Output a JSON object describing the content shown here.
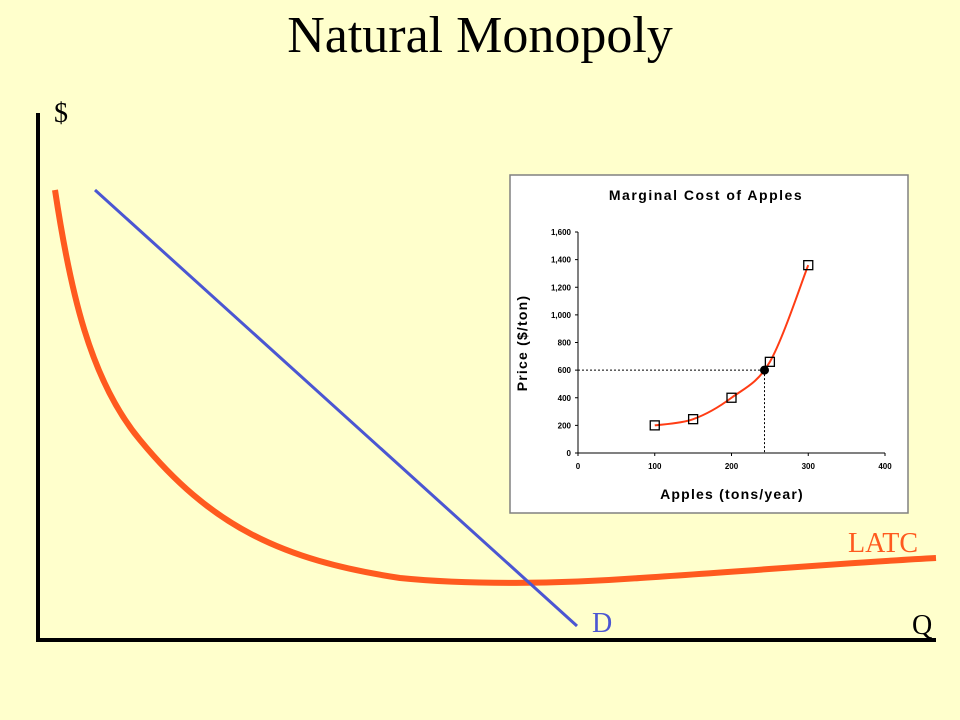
{
  "title": "Natural Monopoly",
  "diagram": {
    "y_label": "$",
    "x_label": "Q",
    "curves": [
      {
        "label": "LATC",
        "color": "#ff5a1f"
      },
      {
        "label": "D",
        "color": "#4b56d2"
      }
    ]
  },
  "chart_data": {
    "type": "line",
    "title": "Marginal Cost of Apples",
    "x_label": "Apples (tons/year)",
    "y_label": "Price ($/ton)",
    "x": [
      100,
      150,
      200,
      250,
      300
    ],
    "series": [
      {
        "color": "#ff3c14",
        "values": [
          200,
          245,
          400,
          660,
          1360
        ]
      }
    ],
    "marker": "square",
    "highlight": {
      "x": 243,
      "y": 600
    },
    "xlim": [
      0,
      400
    ],
    "ylim": [
      0,
      1600
    ],
    "xticks": [
      0,
      100,
      200,
      300,
      400
    ],
    "yticks": [
      0,
      200,
      400,
      600,
      800,
      {
        "value": 1000,
        "label": "1,000"
      },
      {
        "value": 1200,
        "label": "1,200"
      },
      {
        "value": 1400,
        "label": "1,400"
      },
      {
        "value": 1600,
        "label": "1,600"
      }
    ]
  }
}
